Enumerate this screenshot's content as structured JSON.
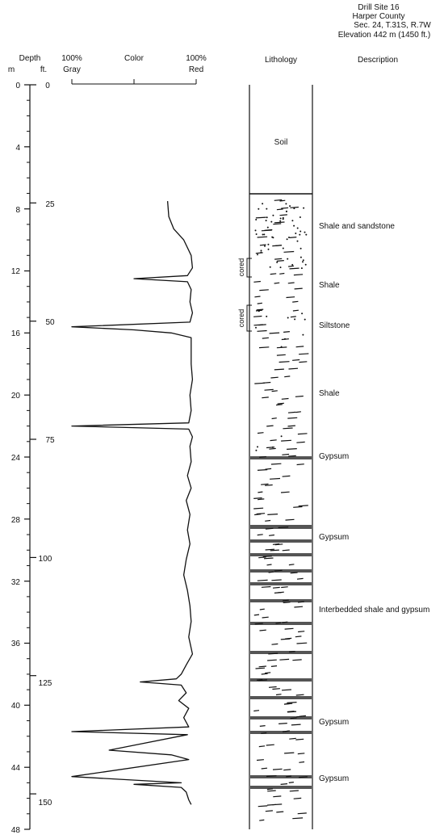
{
  "site": {
    "title": "Drill Site 16",
    "county": "Harper County",
    "location": "Sec. 24, T.31S, R.7W",
    "elevation": "Elevation 442 m (1450 ft.)"
  },
  "headers": {
    "depth": "Depth",
    "m": "m",
    "ft": "ft.",
    "gray_pct": "100%",
    "gray": "Gray",
    "color": "Color",
    "red_pct": "100%",
    "red": "Red",
    "lithology": "Lithology",
    "description": "Description"
  },
  "meter_ticks": [
    "0",
    "4",
    "8",
    "12",
    "16",
    "20",
    "24",
    "28",
    "32",
    "36",
    "40",
    "44",
    "48"
  ],
  "feet_ticks": [
    "0",
    "25",
    "50",
    "75",
    "100",
    "125",
    "150"
  ],
  "cored": [
    "cored",
    "cored"
  ],
  "descriptions": [
    "Soil",
    "Shale and sandstone",
    "Shale",
    "Siltstone",
    "Shale",
    "Gypsum",
    "Gypsum",
    "Interbedded shale and gypsum",
    "Gypsum",
    "Gypsum"
  ],
  "chart_data": {
    "type": "line",
    "title": "",
    "xlabel": "Color (100% Gray to 100% Red)",
    "ylabel": "Depth",
    "xlim": [
      0,
      100
    ],
    "ylim_m": [
      0,
      48
    ],
    "series": [
      {
        "points": [
          [
            77,
            7.5
          ],
          [
            78,
            8.5
          ],
          [
            82,
            9.3
          ],
          [
            90,
            10
          ],
          [
            96,
            11
          ],
          [
            97,
            11.8
          ],
          [
            93,
            12.3
          ],
          [
            50,
            12.5
          ],
          [
            93,
            12.7
          ],
          [
            96,
            13.2
          ],
          [
            95,
            14
          ],
          [
            97,
            14.7
          ],
          [
            95,
            15.3
          ],
          [
            0,
            15.6
          ],
          [
            50,
            15.8
          ],
          [
            80,
            16
          ],
          [
            96,
            16.3
          ],
          [
            96,
            18
          ],
          [
            97,
            19
          ],
          [
            95,
            20
          ],
          [
            96,
            21
          ],
          [
            94,
            21.8
          ],
          [
            0,
            22
          ],
          [
            94,
            22.2
          ],
          [
            97,
            22.7
          ],
          [
            95,
            23.3
          ],
          [
            96,
            24.3
          ],
          [
            93,
            25.2
          ],
          [
            96,
            26
          ],
          [
            92,
            26.8
          ],
          [
            95,
            27.7
          ],
          [
            93,
            28.7
          ],
          [
            95,
            29.6
          ],
          [
            92,
            30.6
          ],
          [
            90,
            31.6
          ],
          [
            93,
            32.6
          ],
          [
            95,
            33.6
          ],
          [
            96,
            34.6
          ],
          [
            94,
            35.6
          ],
          [
            97,
            36.7
          ],
          [
            92,
            37.4
          ],
          [
            88,
            38
          ],
          [
            84,
            38.3
          ],
          [
            55,
            38.5
          ],
          [
            88,
            38.7
          ],
          [
            92,
            39.2
          ],
          [
            86,
            39.7
          ],
          [
            94,
            40.2
          ],
          [
            90,
            40.8
          ],
          [
            94,
            41.4
          ],
          [
            0,
            41.7
          ],
          [
            93,
            41.9
          ],
          [
            55,
            42.5
          ],
          [
            30,
            42.9
          ],
          [
            80,
            43.2
          ],
          [
            94,
            43.5
          ],
          [
            0,
            44.6
          ],
          [
            88,
            45
          ],
          [
            50,
            45.1
          ],
          [
            88,
            45.3
          ],
          [
            92,
            45.6
          ],
          [
            94,
            46.1
          ],
          [
            96,
            46.4
          ]
        ]
      }
    ]
  }
}
